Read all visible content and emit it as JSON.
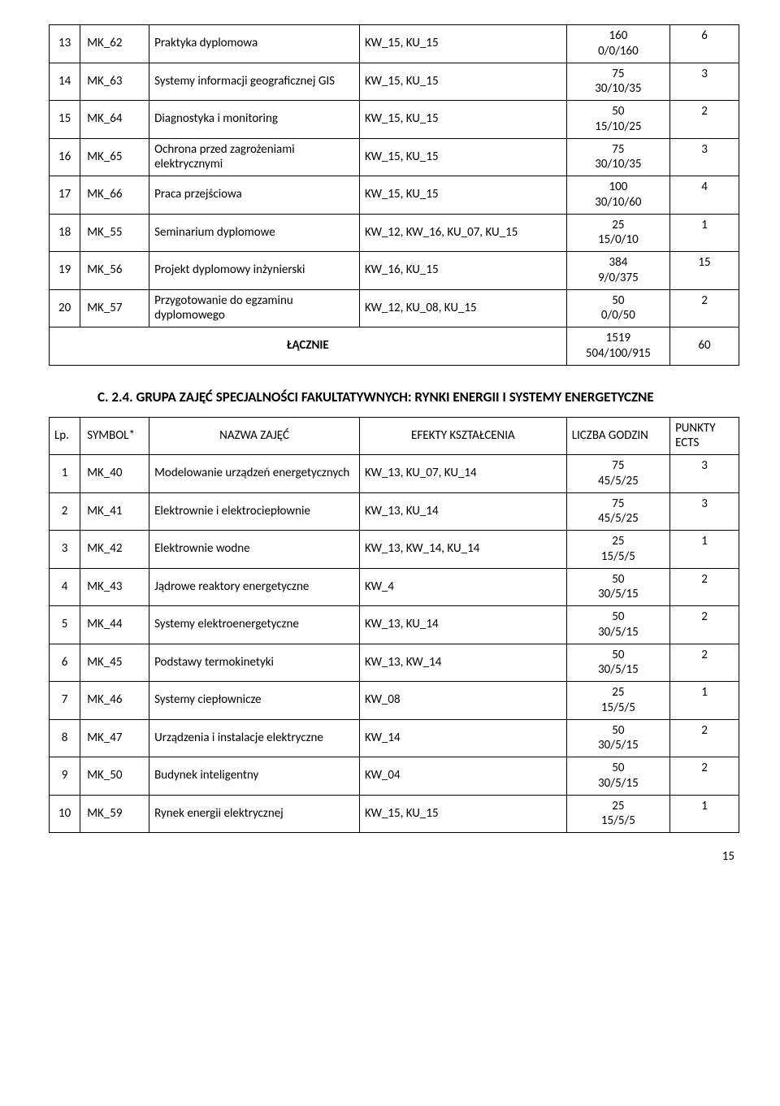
{
  "table1": {
    "rows": [
      {
        "lp": "13",
        "sym": "MK_62",
        "name": "Praktyka dyplomowa",
        "eff": "KW_15, KU_15",
        "h1": "160",
        "h2": "0/0/160",
        "ects": "6"
      },
      {
        "lp": "14",
        "sym": "MK_63",
        "name": "Systemy informacji geograficznej GIS",
        "eff": "KW_15, KU_15",
        "h1": "75",
        "h2": "30/10/35",
        "ects": "3"
      },
      {
        "lp": "15",
        "sym": "MK_64",
        "name": "Diagnostyka i monitoring",
        "eff": "KW_15, KU_15",
        "h1": "50",
        "h2": "15/10/25",
        "ects": "2"
      },
      {
        "lp": "16",
        "sym": "MK_65",
        "name": "Ochrona przed zagrożeniami elektrycznymi",
        "eff": "KW_15, KU_15",
        "h1": "75",
        "h2": "30/10/35",
        "ects": "3"
      },
      {
        "lp": "17",
        "sym": "MK_66",
        "name": "Praca przejściowa",
        "eff": "KW_15, KU_15",
        "h1": "100",
        "h2": "30/10/60",
        "ects": "4"
      },
      {
        "lp": "18",
        "sym": "MK_55",
        "name": "Seminarium dyplomowe",
        "eff": "KW_12, KW_16, KU_07, KU_15",
        "h1": "25",
        "h2": "15/0/10",
        "ects": "1"
      },
      {
        "lp": "19",
        "sym": "MK_56",
        "name": "Projekt dyplomowy inżynierski",
        "eff": "KW_16, KU_15",
        "h1": "384",
        "h2": "9/0/375",
        "ects": "15"
      },
      {
        "lp": "20",
        "sym": "MK_57",
        "name": "Przygotowanie do egzaminu dyplomowego",
        "eff": "KW_12, KU_08, KU_15",
        "h1": "50",
        "h2": "0/0/50",
        "ects": "2"
      }
    ],
    "sum_label": "ŁĄCZNIE",
    "sum_h1": "1519",
    "sum_h2": "504/100/915",
    "sum_ects": "60"
  },
  "section_heading": "C. 2.4. GRUPA ZAJĘĆ SPECJALNOŚCI FAKULTATYWNYCH: RYNKI ENERGII I SYSTEMY ENERGETYCZNE",
  "table2": {
    "headers": {
      "lp": "Lp.",
      "sym": "SYMBOL*",
      "name": "NAZWA ZAJĘĆ",
      "eff": "EFEKTY KSZTAŁCENIA",
      "hours": "LICZBA GODZIN",
      "ects": "PUNKTY ECTS"
    },
    "rows": [
      {
        "lp": "1",
        "sym": "MK_40",
        "name": "Modelowanie urządzeń energetycznych",
        "eff": "KW_13, KU_07, KU_14",
        "h1": "75",
        "h2": "45/5/25",
        "ects": "3"
      },
      {
        "lp": "2",
        "sym": "MK_41",
        "name": "Elektrownie i elektrociepłownie",
        "eff": "KW_13, KU_14",
        "h1": "75",
        "h2": "45/5/25",
        "ects": "3"
      },
      {
        "lp": "3",
        "sym": "MK_42",
        "name": "Elektrownie wodne",
        "eff": "KW_13, KW_14, KU_14",
        "h1": "25",
        "h2": "15/5/5",
        "ects": "1"
      },
      {
        "lp": "4",
        "sym": "MK_43",
        "name": "Jądrowe reaktory energetyczne",
        "eff": "KW_4",
        "h1": "50",
        "h2": "30/5/15",
        "ects": "2"
      },
      {
        "lp": "5",
        "sym": "MK_44",
        "name": "Systemy elektroenergetyczne",
        "eff": "KW_13, KU_14",
        "h1": "50",
        "h2": "30/5/15",
        "ects": "2"
      },
      {
        "lp": "6",
        "sym": "MK_45",
        "name": "Podstawy termokinetyki",
        "eff": "KW_13, KW_14",
        "h1": "50",
        "h2": "30/5/15",
        "ects": "2"
      },
      {
        "lp": "7",
        "sym": "MK_46",
        "name": "Systemy ciepłownicze",
        "eff": "KW_08",
        "h1": "25",
        "h2": "15/5/5",
        "ects": "1"
      },
      {
        "lp": "8",
        "sym": "MK_47",
        "name": "Urządzenia i instalacje elektryczne",
        "eff": "KW_14",
        "h1": "50",
        "h2": "30/5/15",
        "ects": "2"
      },
      {
        "lp": "9",
        "sym": "MK_50",
        "name": "Budynek inteligentny",
        "eff": "KW_04",
        "h1": "50",
        "h2": "30/5/15",
        "ects": "2"
      },
      {
        "lp": "10",
        "sym": "MK_59",
        "name": "Rynek energii elektrycznej",
        "eff": "KW_15, KU_15",
        "h1": "25",
        "h2": "15/5/5",
        "ects": "1"
      }
    ]
  },
  "page_number": "15"
}
